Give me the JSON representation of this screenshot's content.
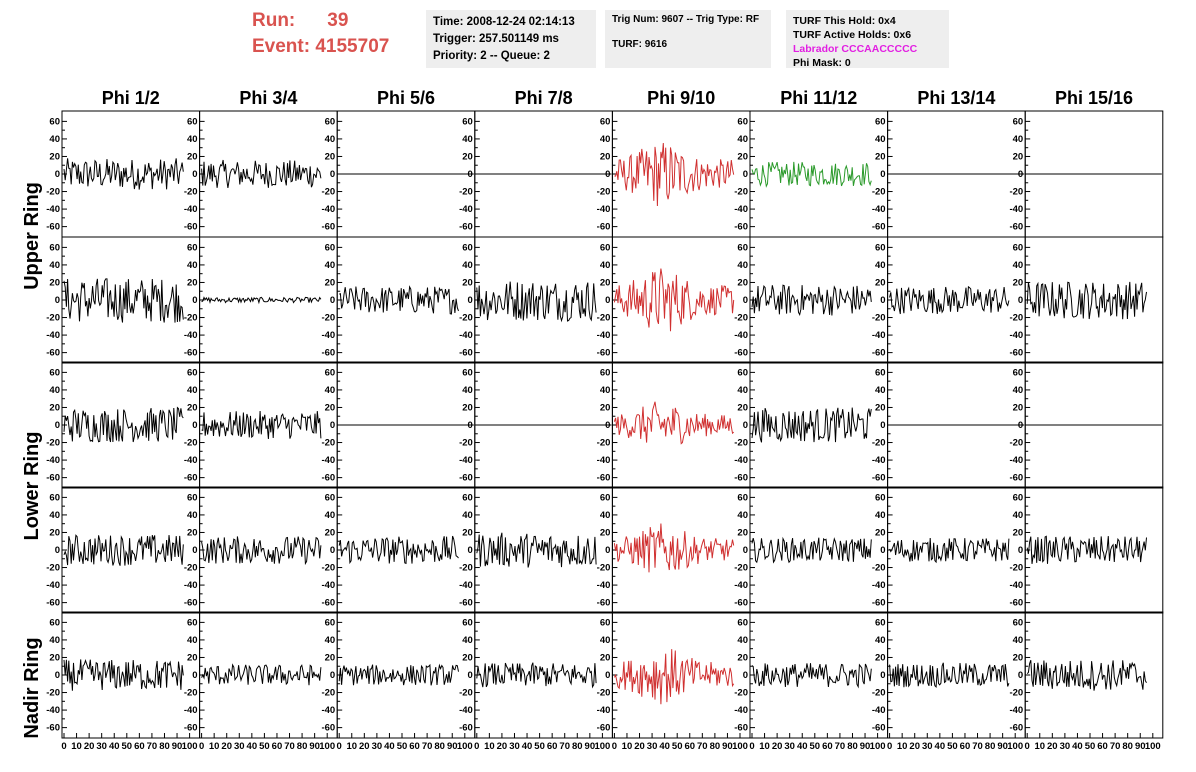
{
  "header": {
    "run_label": "Run:",
    "run_value": "39",
    "event_label": "Event:",
    "event_value": "4155707"
  },
  "info_boxes": {
    "time": "Time: 2008-12-24 02:14:13",
    "trigger": "Trigger: 257.501149 ms",
    "priority": "Priority: 2 -- Queue: 2",
    "trig": "Trig Num: 9607 -- Trig Type: RF",
    "turf": "TURF: 9616",
    "turf_hold": "TURF This Hold: 0x4",
    "turf_active": "TURF Active Holds: 0x6",
    "labrador": "Labrador CCCAACCCCC",
    "phi_mask": "Phi Mask: 0"
  },
  "chart_data": {
    "type": "line",
    "columns": [
      "Phi 1/2",
      "Phi 3/4",
      "Phi 5/6",
      "Phi 7/8",
      "Phi 9/10",
      "Phi 11/12",
      "Phi 13/14",
      "Phi 15/16"
    ],
    "ring_labels": [
      "Upper Ring",
      "Lower Ring",
      "Nadir Ring"
    ],
    "y_ticks": [
      "60",
      "40",
      "20",
      "0",
      "-20",
      "-40",
      "-60"
    ],
    "x_ticks": [
      "0",
      "10",
      "20",
      "30",
      "40",
      "50",
      "60",
      "70",
      "80",
      "90",
      "100"
    ],
    "xlim": [
      0,
      100
    ],
    "ylim": [
      -65,
      65
    ],
    "colors": {
      "normal": "#000000",
      "triggered": "#d03030",
      "hold": "#2a9a2a"
    },
    "panels": [
      [
        {
          "a": 18,
          "c": "normal"
        },
        {
          "a": 16,
          "c": "normal"
        },
        {
          "a": 0,
          "c": "normal"
        },
        {
          "a": 0,
          "c": "normal"
        },
        {
          "a": 28,
          "c": "triggered"
        },
        {
          "a": 14,
          "c": "hold"
        },
        {
          "a": 0,
          "c": "normal"
        },
        {
          "a": 0,
          "c": "normal"
        }
      ],
      [
        {
          "a": 26,
          "c": "normal"
        },
        {
          "a": 3,
          "c": "normal"
        },
        {
          "a": 16,
          "c": "normal"
        },
        {
          "a": 24,
          "c": "normal"
        },
        {
          "a": 28,
          "c": "triggered"
        },
        {
          "a": 18,
          "c": "normal"
        },
        {
          "a": 16,
          "c": "normal"
        },
        {
          "a": 22,
          "c": "normal"
        }
      ],
      [
        {
          "a": 20,
          "c": "normal"
        },
        {
          "a": 16,
          "c": "normal"
        },
        {
          "a": 0,
          "c": "normal"
        },
        {
          "a": 0,
          "c": "normal"
        },
        {
          "a": 20,
          "c": "triggered"
        },
        {
          "a": 20,
          "c": "normal"
        },
        {
          "a": 0,
          "c": "normal"
        },
        {
          "a": 0,
          "c": "normal"
        }
      ],
      [
        {
          "a": 18,
          "c": "normal"
        },
        {
          "a": 16,
          "c": "normal"
        },
        {
          "a": 16,
          "c": "normal"
        },
        {
          "a": 20,
          "c": "normal"
        },
        {
          "a": 22,
          "c": "triggered"
        },
        {
          "a": 14,
          "c": "normal"
        },
        {
          "a": 14,
          "c": "normal"
        },
        {
          "a": 16,
          "c": "normal"
        }
      ],
      [
        {
          "a": 18,
          "c": "normal"
        },
        {
          "a": 12,
          "c": "normal"
        },
        {
          "a": 12,
          "c": "normal"
        },
        {
          "a": 14,
          "c": "normal"
        },
        {
          "a": 24,
          "c": "triggered"
        },
        {
          "a": 14,
          "c": "normal"
        },
        {
          "a": 14,
          "c": "normal"
        },
        {
          "a": 18,
          "c": "normal"
        }
      ]
    ]
  }
}
